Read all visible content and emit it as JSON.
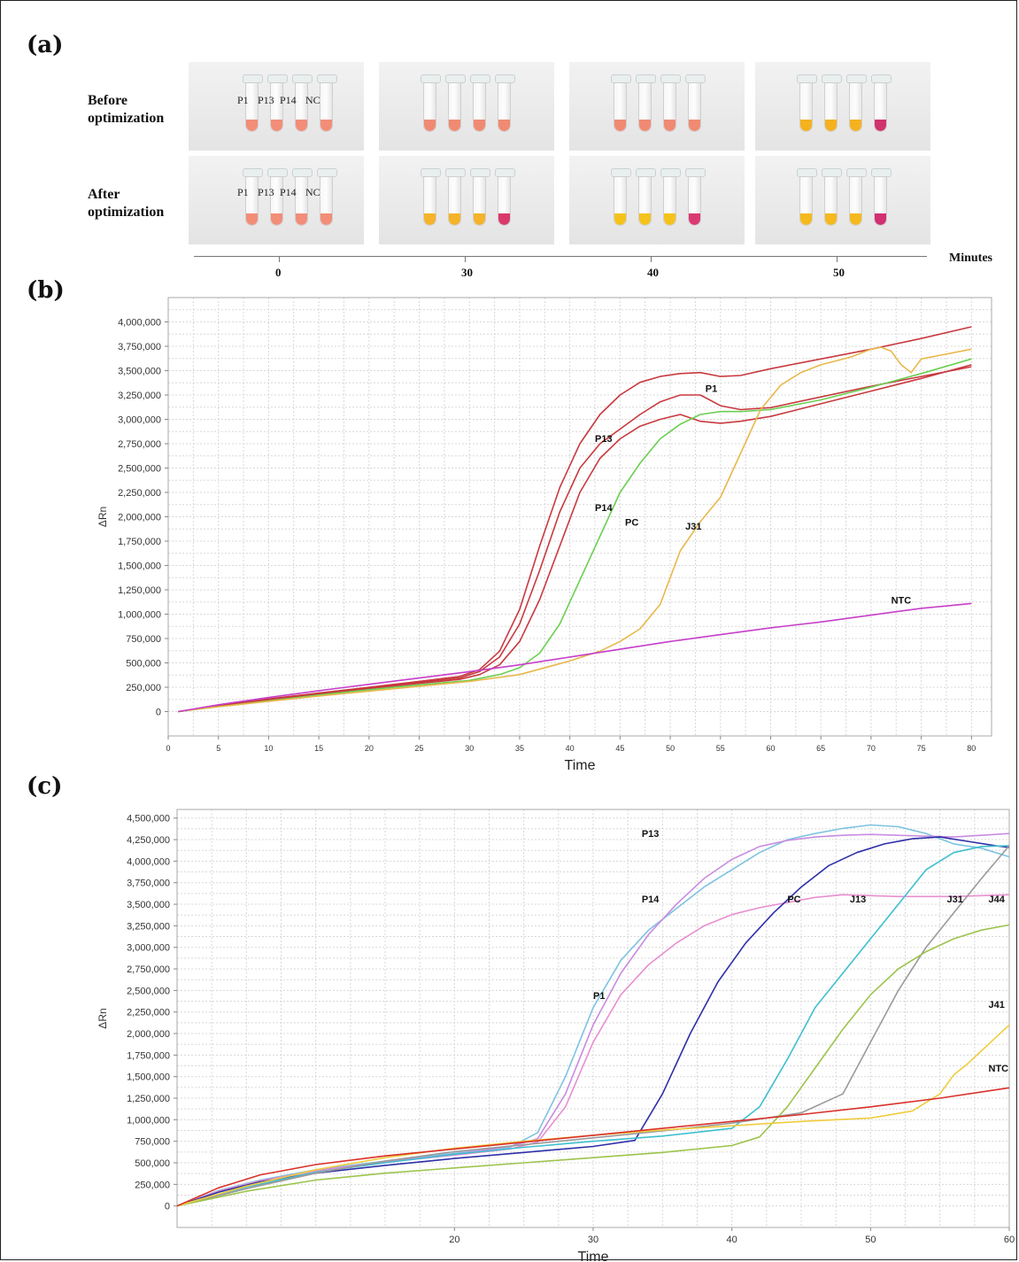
{
  "panel_a": {
    "label": "(a)",
    "rows": [
      {
        "label": "Before\noptimization",
        "tube_labels": [
          "P1",
          "P13",
          "P14",
          "NC"
        ],
        "colors": [
          [
            "#f28d78",
            "#f28d78",
            "#f28d78",
            "#f28d78"
          ],
          [
            "#f08a72",
            "#f08a72",
            "#f08a72",
            "#f08a72"
          ],
          [
            "#f08a72",
            "#f08a72",
            "#f08a72",
            "#f08a72"
          ],
          [
            "#f4b21f",
            "#f4b21f",
            "#f4b21f",
            "#d0326c"
          ]
        ]
      },
      {
        "label": "After\noptimization",
        "tube_labels": [
          "P1",
          "P13",
          "P14",
          "NC"
        ],
        "colors": [
          [
            "#f28d78",
            "#f28d78",
            "#f28d78",
            "#f28d78"
          ],
          [
            "#f5b32a",
            "#f5b32a",
            "#f5b32a",
            "#d93a6a"
          ],
          [
            "#f5c21c",
            "#f5c21c",
            "#f5c21c",
            "#da3a72"
          ],
          [
            "#f5b91e",
            "#f5b91e",
            "#f5b91e",
            "#d23070"
          ]
        ]
      }
    ],
    "time_labels": [
      "0",
      "30",
      "40",
      "50"
    ],
    "time_unit": "Minutes"
  },
  "chart_data": [
    {
      "panel_label": "(b)",
      "type": "line",
      "xlabel": "Time",
      "ylabel": "ΔRn",
      "xlim": [
        0,
        82
      ],
      "ylim": [
        -250000,
        4250000
      ],
      "xticks": [
        0,
        5,
        10,
        15,
        20,
        25,
        30,
        35,
        40,
        45,
        50,
        55,
        60,
        65,
        70,
        75,
        80
      ],
      "yticks": [
        0,
        250000,
        500000,
        750000,
        1000000,
        1250000,
        1500000,
        1750000,
        2000000,
        2250000,
        2500000,
        2750000,
        3000000,
        3250000,
        3500000,
        3750000,
        4000000
      ],
      "ytick_labels": [
        "0",
        "250,000",
        "500,000",
        "750,000",
        "1,000,000",
        "1,250,000",
        "1,500,000",
        "1,750,000",
        "2,000,000",
        "2,250,000",
        "2,500,000",
        "2,750,000",
        "3,000,000",
        "3,250,000",
        "3,500,000",
        "3,750,000",
        "4,000,000"
      ],
      "grid": true,
      "series": [
        {
          "name": "P13",
          "color": "#c8393f",
          "x": [
            1,
            5,
            10,
            15,
            20,
            25,
            29,
            31,
            33,
            35,
            37,
            39,
            41,
            43,
            45,
            47,
            49,
            51,
            53,
            55,
            57,
            60,
            65,
            70,
            75,
            80
          ],
          "y": [
            0,
            60000,
            130000,
            190000,
            250000,
            310000,
            360000,
            430000,
            620000,
            1050000,
            1700000,
            2300000,
            2750000,
            3050000,
            3250000,
            3380000,
            3440000,
            3470000,
            3480000,
            3440000,
            3450000,
            3520000,
            3620000,
            3720000,
            3830000,
            3950000
          ]
        },
        {
          "name": "P1",
          "color": "#c8393f",
          "x": [
            1,
            5,
            10,
            15,
            20,
            25,
            29,
            31,
            33,
            35,
            37,
            39,
            41,
            43,
            45,
            47,
            49,
            51,
            53,
            55,
            57,
            60,
            65,
            70,
            75,
            80
          ],
          "y": [
            0,
            55000,
            120000,
            180000,
            240000,
            300000,
            345000,
            410000,
            560000,
            900000,
            1450000,
            2050000,
            2500000,
            2750000,
            2900000,
            3050000,
            3180000,
            3250000,
            3250000,
            3140000,
            3100000,
            3120000,
            3230000,
            3340000,
            3440000,
            3540000
          ]
        },
        {
          "name": "P14",
          "color": "#c8393f",
          "x": [
            1,
            5,
            10,
            15,
            20,
            25,
            29,
            31,
            33,
            35,
            37,
            39,
            41,
            43,
            45,
            47,
            49,
            51,
            53,
            55,
            57,
            60,
            65,
            70,
            75,
            80
          ],
          "y": [
            0,
            55000,
            120000,
            180000,
            235000,
            290000,
            330000,
            380000,
            480000,
            720000,
            1150000,
            1700000,
            2250000,
            2600000,
            2800000,
            2930000,
            3000000,
            3050000,
            2980000,
            2960000,
            2980000,
            3030000,
            3160000,
            3290000,
            3420000,
            3560000
          ]
        },
        {
          "name": "PC",
          "color": "#6ccf52",
          "x": [
            1,
            5,
            10,
            15,
            20,
            25,
            30,
            33,
            35,
            37,
            39,
            41,
            43,
            45,
            47,
            49,
            51,
            53,
            55,
            57,
            60,
            65,
            70,
            75,
            80
          ],
          "y": [
            0,
            50000,
            110000,
            170000,
            225000,
            275000,
            320000,
            380000,
            450000,
            600000,
            900000,
            1350000,
            1800000,
            2250000,
            2550000,
            2800000,
            2950000,
            3050000,
            3080000,
            3080000,
            3100000,
            3200000,
            3330000,
            3470000,
            3620000
          ]
        },
        {
          "name": "J31",
          "color": "#e8b84c",
          "x": [
            1,
            5,
            10,
            15,
            20,
            25,
            30,
            35,
            40,
            43,
            45,
            47,
            49,
            51,
            53,
            55,
            57,
            59,
            61,
            63,
            65,
            68,
            70,
            71,
            72,
            73,
            74,
            75,
            77,
            80
          ],
          "y": [
            0,
            50000,
            105000,
            160000,
            210000,
            260000,
            310000,
            380000,
            520000,
            620000,
            720000,
            850000,
            1100000,
            1650000,
            1950000,
            2200000,
            2650000,
            3100000,
            3350000,
            3480000,
            3560000,
            3640000,
            3720000,
            3740000,
            3700000,
            3560000,
            3480000,
            3620000,
            3660000,
            3720000
          ]
        },
        {
          "name": "NTC",
          "color": "#c63fc9",
          "x": [
            1,
            5,
            10,
            15,
            20,
            25,
            30,
            35,
            40,
            45,
            50,
            55,
            60,
            65,
            70,
            75,
            80
          ],
          "y": [
            0,
            70000,
            145000,
            215000,
            280000,
            345000,
            410000,
            480000,
            560000,
            640000,
            720000,
            790000,
            860000,
            920000,
            990000,
            1060000,
            1110000
          ]
        }
      ],
      "annotations": [
        "P1",
        "P13",
        "P14",
        "PC",
        "J31",
        "NTC"
      ]
    },
    {
      "panel_label": "(c)",
      "type": "line",
      "xlabel": "Time",
      "ylabel": "ΔRn",
      "xlim": [
        0,
        60
      ],
      "ylim": [
        -250000,
        4600000
      ],
      "xticks": [
        20,
        30,
        40,
        50,
        60
      ],
      "yticks": [
        0,
        250000,
        500000,
        750000,
        1000000,
        1250000,
        1500000,
        1750000,
        2000000,
        2250000,
        2500000,
        2750000,
        3000000,
        3250000,
        3500000,
        3750000,
        4000000,
        4250000,
        4500000
      ],
      "ytick_labels": [
        "0",
        "250,000",
        "500,000",
        "750,000",
        "1,000,000",
        "1,250,000",
        "1,500,000",
        "1,750,000",
        "2,000,000",
        "2,250,000",
        "2,500,000",
        "2,750,000",
        "3,000,000",
        "3,250,000",
        "3,500,000",
        "3,750,000",
        "4,000,000",
        "4,250,000",
        "4,500,000"
      ],
      "grid": true,
      "series": [
        {
          "name": "P1",
          "color": "#7ec3e0",
          "x": [
            0,
            3,
            6,
            10,
            15,
            20,
            24,
            26,
            28,
            30,
            32,
            34,
            36,
            38,
            40,
            42,
            44,
            46,
            48,
            50,
            52,
            54,
            56,
            58,
            60
          ],
          "y": [
            0,
            180000,
            300000,
            420000,
            520000,
            610000,
            680000,
            850000,
            1500000,
            2300000,
            2850000,
            3200000,
            3450000,
            3700000,
            3900000,
            4100000,
            4250000,
            4320000,
            4380000,
            4420000,
            4400000,
            4320000,
            4200000,
            4150000,
            4050000
          ]
        },
        {
          "name": "P13",
          "color": "#c88ce0",
          "x": [
            0,
            3,
            6,
            10,
            15,
            20,
            24,
            26,
            28,
            30,
            32,
            34,
            36,
            38,
            40,
            42,
            44,
            46,
            48,
            50,
            52,
            54,
            56,
            58,
            60
          ],
          "y": [
            0,
            170000,
            290000,
            410000,
            510000,
            600000,
            690000,
            780000,
            1300000,
            2100000,
            2700000,
            3150000,
            3500000,
            3800000,
            4020000,
            4170000,
            4240000,
            4280000,
            4300000,
            4310000,
            4300000,
            4290000,
            4280000,
            4300000,
            4320000
          ]
        },
        {
          "name": "P14",
          "color": "#e78fd0",
          "x": [
            0,
            3,
            6,
            10,
            15,
            20,
            24,
            26,
            28,
            30,
            32,
            34,
            36,
            38,
            40,
            42,
            44,
            46,
            48,
            50,
            52,
            54,
            56,
            58,
            60
          ],
          "y": [
            0,
            170000,
            290000,
            400000,
            505000,
            590000,
            660000,
            740000,
            1150000,
            1900000,
            2450000,
            2800000,
            3050000,
            3250000,
            3380000,
            3460000,
            3520000,
            3580000,
            3610000,
            3600000,
            3590000,
            3590000,
            3590000,
            3600000,
            3610000
          ]
        },
        {
          "name": "PC",
          "color": "#2e2fa8",
          "x": [
            0,
            3,
            6,
            10,
            15,
            20,
            25,
            30,
            33,
            35,
            37,
            39,
            41,
            43,
            45,
            47,
            49,
            51,
            53,
            55,
            57,
            59,
            60
          ],
          "y": [
            0,
            160000,
            280000,
            380000,
            470000,
            550000,
            620000,
            690000,
            760000,
            1300000,
            2000000,
            2600000,
            3050000,
            3400000,
            3700000,
            3950000,
            4100000,
            4200000,
            4260000,
            4280000,
            4230000,
            4180000,
            4160000
          ]
        },
        {
          "name": "J13",
          "color": "#3fbfd0",
          "x": [
            0,
            5,
            10,
            15,
            20,
            25,
            30,
            35,
            40,
            42,
            44,
            46,
            48,
            50,
            52,
            54,
            56,
            58,
            60
          ],
          "y": [
            0,
            220000,
            390000,
            500000,
            600000,
            680000,
            750000,
            810000,
            900000,
            1150000,
            1700000,
            2300000,
            2700000,
            3100000,
            3500000,
            3900000,
            4100000,
            4170000,
            4180000
          ]
        },
        {
          "name": "J31",
          "color": "#9a9a9a",
          "x": [
            0,
            5,
            10,
            15,
            20,
            25,
            30,
            35,
            40,
            45,
            48,
            50,
            52,
            54,
            56,
            58,
            60
          ],
          "y": [
            0,
            200000,
            380000,
            520000,
            630000,
            710000,
            790000,
            870000,
            960000,
            1080000,
            1300000,
            1900000,
            2500000,
            3000000,
            3400000,
            3800000,
            4180000
          ]
        },
        {
          "name": "J44",
          "color": "#9cc44c",
          "x": [
            0,
            5,
            10,
            15,
            20,
            25,
            30,
            35,
            40,
            42,
            44,
            46,
            48,
            50,
            52,
            54,
            56,
            58,
            60
          ],
          "y": [
            0,
            170000,
            300000,
            380000,
            440000,
            500000,
            560000,
            620000,
            700000,
            800000,
            1150000,
            1600000,
            2050000,
            2450000,
            2750000,
            2950000,
            3100000,
            3200000,
            3260000
          ]
        },
        {
          "name": "J41",
          "color": "#f0cc3e",
          "x": [
            0,
            5,
            10,
            15,
            20,
            25,
            30,
            35,
            40,
            45,
            50,
            53,
            55,
            56,
            57,
            58,
            59,
            60
          ],
          "y": [
            0,
            230000,
            420000,
            560000,
            670000,
            750000,
            820000,
            880000,
            930000,
            980000,
            1020000,
            1100000,
            1300000,
            1520000,
            1650000,
            1800000,
            1950000,
            2100000
          ]
        },
        {
          "name": "NTC",
          "color": "#d9302a",
          "x": [
            0,
            3,
            6,
            10,
            15,
            20,
            25,
            30,
            35,
            40,
            45,
            50,
            55,
            60
          ],
          "y": [
            0,
            210000,
            360000,
            480000,
            580000,
            660000,
            740000,
            820000,
            900000,
            980000,
            1060000,
            1150000,
            1250000,
            1370000
          ]
        }
      ],
      "annotations": [
        "P1",
        "P13",
        "P14",
        "PC",
        "J13",
        "J31",
        "J44",
        "J41",
        "NTC"
      ]
    }
  ]
}
